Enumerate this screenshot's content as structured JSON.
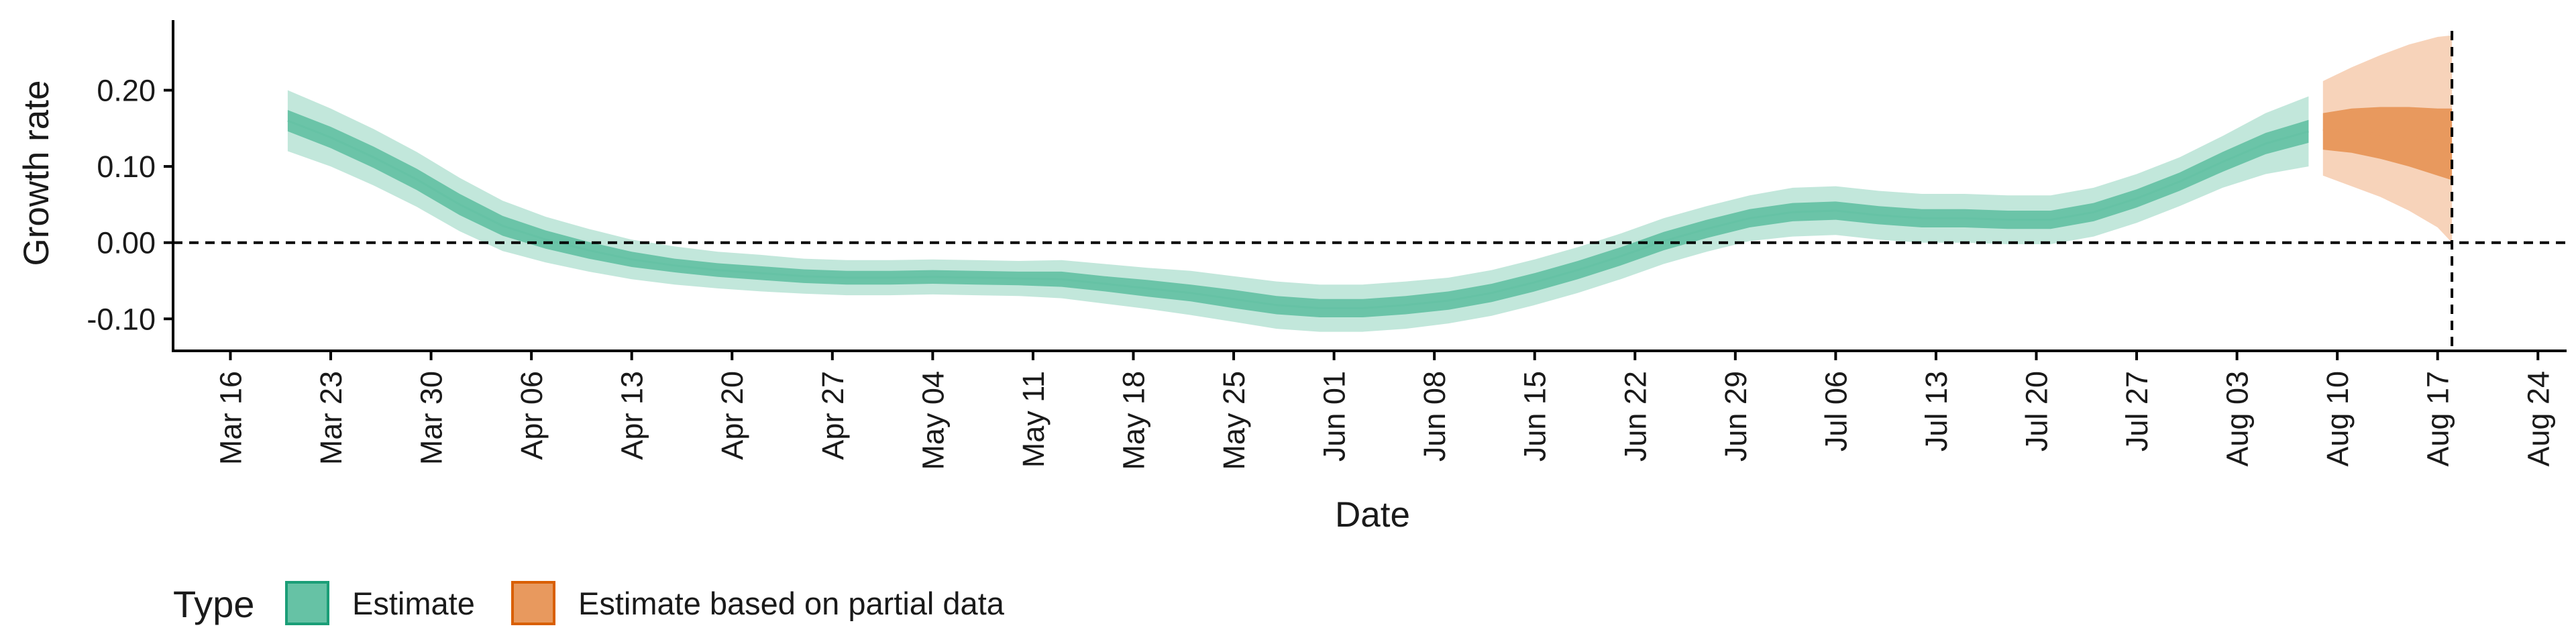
{
  "chart_data": {
    "type": "area",
    "xlabel": "Date",
    "ylabel": "Growth rate",
    "xlim": [
      "2020-03-12",
      "2020-08-26"
    ],
    "ylim": [
      -0.142,
      0.292
    ],
    "y_ticks": [
      -0.1,
      0.0,
      0.1,
      0.2
    ],
    "y_tick_labels": [
      "-0.10",
      "0.00",
      "0.10",
      "0.20"
    ],
    "x_ticks": [
      "2020-03-16",
      "2020-03-23",
      "2020-03-30",
      "2020-04-06",
      "2020-04-13",
      "2020-04-20",
      "2020-04-27",
      "2020-05-04",
      "2020-05-11",
      "2020-05-18",
      "2020-05-25",
      "2020-06-01",
      "2020-06-08",
      "2020-06-15",
      "2020-06-22",
      "2020-06-29",
      "2020-07-06",
      "2020-07-13",
      "2020-07-20",
      "2020-07-27",
      "2020-08-03",
      "2020-08-10",
      "2020-08-17",
      "2020-08-24"
    ],
    "x_tick_labels": [
      "Mar 16",
      "Mar 23",
      "Mar 30",
      "Apr 06",
      "Apr 13",
      "Apr 20",
      "Apr 27",
      "May 04",
      "May 11",
      "May 18",
      "May 25",
      "Jun 01",
      "Jun 08",
      "Jun 15",
      "Jun 22",
      "Jun 29",
      "Jul 06",
      "Jul 13",
      "Jul 20",
      "Jul 27",
      "Aug 03",
      "Aug 10",
      "Aug 17",
      "Aug 24"
    ],
    "reference_lines": {
      "horizontal_y": 0.0,
      "vertical_x": "2020-08-18",
      "style": "dashed"
    },
    "grid": false,
    "legend": {
      "title": "Type",
      "position": "bottom-left",
      "entries": [
        {
          "label": "Estimate",
          "color": "#66c2a5",
          "border": "#1b9e77"
        },
        {
          "label": "Estimate based on partial data",
          "color": "#e8995e",
          "border": "#d95f02"
        }
      ]
    },
    "series": [
      {
        "name": "Estimate",
        "color": "#1b9e77",
        "x": [
          "2020-03-20",
          "2020-03-23",
          "2020-03-26",
          "2020-03-29",
          "2020-04-01",
          "2020-04-04",
          "2020-04-07",
          "2020-04-10",
          "2020-04-13",
          "2020-04-16",
          "2020-04-19",
          "2020-04-22",
          "2020-04-25",
          "2020-04-28",
          "2020-05-01",
          "2020-05-04",
          "2020-05-07",
          "2020-05-10",
          "2020-05-13",
          "2020-05-16",
          "2020-05-19",
          "2020-05-22",
          "2020-05-25",
          "2020-05-28",
          "2020-05-31",
          "2020-06-03",
          "2020-06-06",
          "2020-06-09",
          "2020-06-12",
          "2020-06-15",
          "2020-06-18",
          "2020-06-21",
          "2020-06-24",
          "2020-06-27",
          "2020-06-30",
          "2020-07-03",
          "2020-07-06",
          "2020-07-09",
          "2020-07-12",
          "2020-07-15",
          "2020-07-18",
          "2020-07-21",
          "2020-07-24",
          "2020-07-27",
          "2020-07-30",
          "2020-08-02",
          "2020-08-05",
          "2020-08-08"
        ],
        "median": [
          0.16,
          0.138,
          0.112,
          0.083,
          0.05,
          0.022,
          0.004,
          -0.01,
          -0.022,
          -0.03,
          -0.036,
          -0.04,
          -0.044,
          -0.046,
          -0.046,
          -0.045,
          -0.046,
          -0.047,
          -0.048,
          -0.054,
          -0.06,
          -0.066,
          -0.074,
          -0.082,
          -0.086,
          -0.086,
          -0.082,
          -0.076,
          -0.066,
          -0.052,
          -0.036,
          -0.018,
          0.002,
          0.018,
          0.032,
          0.04,
          0.042,
          0.036,
          0.032,
          0.032,
          0.03,
          0.03,
          0.04,
          0.058,
          0.08,
          0.106,
          0.13,
          0.146
        ],
        "lower50": [
          0.146,
          0.124,
          0.098,
          0.069,
          0.036,
          0.009,
          -0.008,
          -0.021,
          -0.032,
          -0.039,
          -0.045,
          -0.049,
          -0.053,
          -0.055,
          -0.055,
          -0.054,
          -0.055,
          -0.056,
          -0.058,
          -0.064,
          -0.071,
          -0.077,
          -0.086,
          -0.094,
          -0.098,
          -0.098,
          -0.094,
          -0.088,
          -0.078,
          -0.064,
          -0.048,
          -0.03,
          -0.01,
          0.006,
          0.02,
          0.028,
          0.03,
          0.024,
          0.02,
          0.02,
          0.018,
          0.018,
          0.028,
          0.046,
          0.068,
          0.093,
          0.116,
          0.131
        ],
        "upper50": [
          0.174,
          0.152,
          0.126,
          0.097,
          0.064,
          0.035,
          0.016,
          0.001,
          -0.012,
          -0.021,
          -0.027,
          -0.031,
          -0.035,
          -0.037,
          -0.037,
          -0.036,
          -0.037,
          -0.038,
          -0.038,
          -0.044,
          -0.049,
          -0.055,
          -0.062,
          -0.07,
          -0.074,
          -0.074,
          -0.07,
          -0.064,
          -0.054,
          -0.04,
          -0.024,
          -0.006,
          0.014,
          0.03,
          0.044,
          0.052,
          0.054,
          0.048,
          0.044,
          0.044,
          0.042,
          0.042,
          0.052,
          0.07,
          0.092,
          0.119,
          0.144,
          0.161
        ],
        "lower90": [
          0.12,
          0.1,
          0.075,
          0.047,
          0.015,
          -0.011,
          -0.026,
          -0.038,
          -0.048,
          -0.055,
          -0.06,
          -0.064,
          -0.067,
          -0.069,
          -0.069,
          -0.068,
          -0.069,
          -0.07,
          -0.073,
          -0.08,
          -0.087,
          -0.095,
          -0.104,
          -0.113,
          -0.117,
          -0.117,
          -0.113,
          -0.106,
          -0.096,
          -0.082,
          -0.066,
          -0.048,
          -0.028,
          -0.012,
          0.002,
          0.008,
          0.01,
          0.004,
          0.0,
          0.0,
          -0.002,
          -0.002,
          0.008,
          0.026,
          0.048,
          0.072,
          0.09,
          0.1
        ],
        "upper90": [
          0.2,
          0.176,
          0.149,
          0.119,
          0.085,
          0.055,
          0.034,
          0.018,
          0.004,
          -0.005,
          -0.012,
          -0.016,
          -0.021,
          -0.023,
          -0.023,
          -0.022,
          -0.023,
          -0.024,
          -0.023,
          -0.028,
          -0.033,
          -0.037,
          -0.044,
          -0.051,
          -0.055,
          -0.055,
          -0.051,
          -0.046,
          -0.036,
          -0.022,
          -0.006,
          0.012,
          0.032,
          0.048,
          0.062,
          0.072,
          0.074,
          0.068,
          0.064,
          0.064,
          0.062,
          0.062,
          0.072,
          0.09,
          0.112,
          0.14,
          0.17,
          0.192
        ]
      },
      {
        "name": "Estimate based on partial data",
        "color": "#d95f02",
        "x": [
          "2020-08-09",
          "2020-08-11",
          "2020-08-13",
          "2020-08-15",
          "2020-08-17",
          "2020-08-18"
        ],
        "median": [
          0.148,
          0.146,
          0.142,
          0.138,
          0.132,
          0.13
        ],
        "lower50": [
          0.122,
          0.118,
          0.11,
          0.1,
          0.088,
          0.082
        ],
        "upper50": [
          0.17,
          0.176,
          0.178,
          0.178,
          0.176,
          0.176
        ],
        "lower90": [
          0.088,
          0.074,
          0.06,
          0.042,
          0.02,
          0.0
        ],
        "upper90": [
          0.212,
          0.23,
          0.246,
          0.26,
          0.27,
          0.272
        ]
      }
    ]
  }
}
